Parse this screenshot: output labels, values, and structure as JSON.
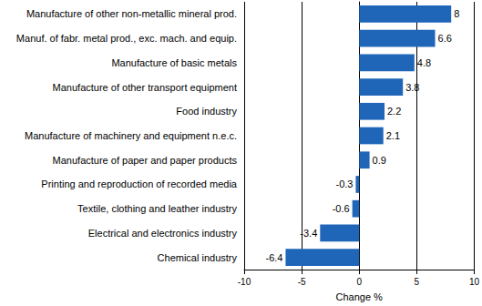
{
  "chart_data": {
    "type": "bar",
    "orientation": "horizontal",
    "categories": [
      "Manufacture of other non-metallic mineral prod.",
      "Manuf. of fabr. metal prod., exc. mach. and equip.",
      "Manufacture of basic metals",
      "Manufacture of other transport equipment",
      "Food industry",
      "Manufacture of machinery and equipment n.e.c.",
      "Manufacture of paper and paper products",
      "Printing and reproduction of recorded media",
      "Textile, clothing and leather industry",
      "Electrical and electronics industry",
      "Chemical industry"
    ],
    "values": [
      8,
      6.6,
      4.8,
      3.8,
      2.2,
      2.1,
      0.9,
      -0.3,
      -0.6,
      -3.4,
      -6.4
    ],
    "color": "#1f66b8",
    "x_label": "Change %",
    "xlim": [
      -10,
      10
    ],
    "xticks": [
      -10,
      -5,
      0,
      5,
      10
    ],
    "grid": true,
    "data_labels": true
  }
}
